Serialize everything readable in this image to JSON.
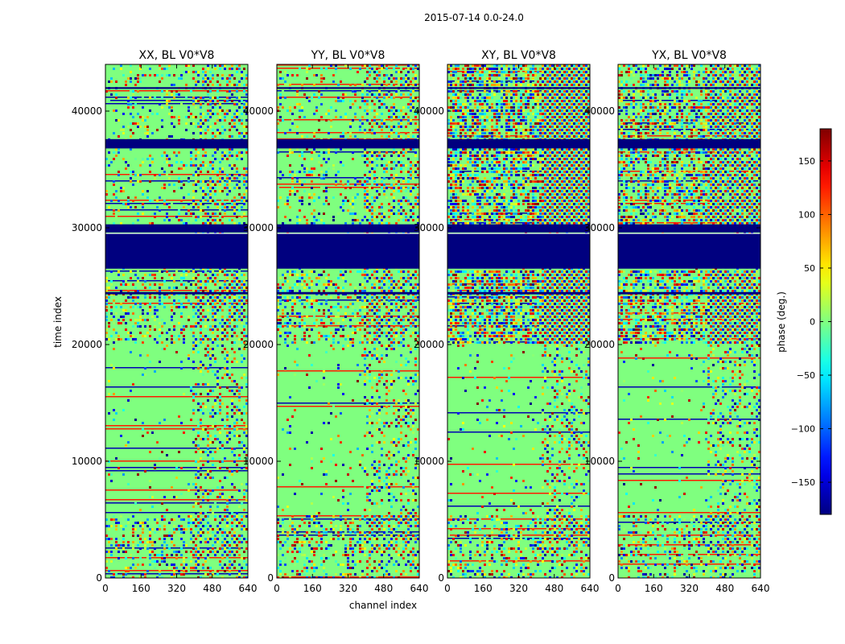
{
  "figure": {
    "suptitle": "2015-07-14 0.0-24.0",
    "colors": {
      "background": "#ffffff",
      "axes_edge": "#000000",
      "dominant_fill": "#7fff7f",
      "flag_fill": "#00007f",
      "rule_fill": "#ffffff"
    }
  },
  "chart_data": {
    "type": "heatmap",
    "title": "2015-07-14 0.0-24.0",
    "xlabel": "channel index",
    "ylabel": "time index",
    "xlim": [
      0,
      640
    ],
    "ylim": [
      0,
      44000
    ],
    "xticks": [
      0,
      160,
      320,
      480,
      640
    ],
    "yticks": [
      0,
      10000,
      20000,
      30000,
      40000
    ],
    "panels": [
      {
        "title": "XX, BL V0*V8",
        "noise_upper": 0.2,
        "noise_mid": 0.35,
        "fringe_start": 380
      },
      {
        "title": "YY, BL V0*V8",
        "noise_upper": 0.22,
        "noise_mid": 0.35,
        "fringe_start": 390
      },
      {
        "title": "XY, BL V0*V8",
        "noise_upper": 0.75,
        "noise_mid": 0.75,
        "fringe_start": 420
      },
      {
        "title": "YX, BL V0*V8",
        "noise_upper": 0.6,
        "noise_mid": 0.65,
        "fringe_start": 400
      }
    ],
    "flagged_time_ranges": [
      [
        26500,
        29500
      ],
      [
        29600,
        30300
      ],
      [
        36800,
        37600
      ],
      [
        24300,
        24500
      ],
      [
        41900,
        42050
      ]
    ],
    "colorbar": {
      "label": "phase (deg.)",
      "range": [
        -180,
        180
      ],
      "ticks": [
        -150,
        -100,
        -50,
        0,
        50,
        100,
        150
      ],
      "tick_labels": [
        "−150",
        "−100",
        "−50",
        "0",
        "50",
        "100",
        "150"
      ],
      "colormap": "jet"
    }
  }
}
